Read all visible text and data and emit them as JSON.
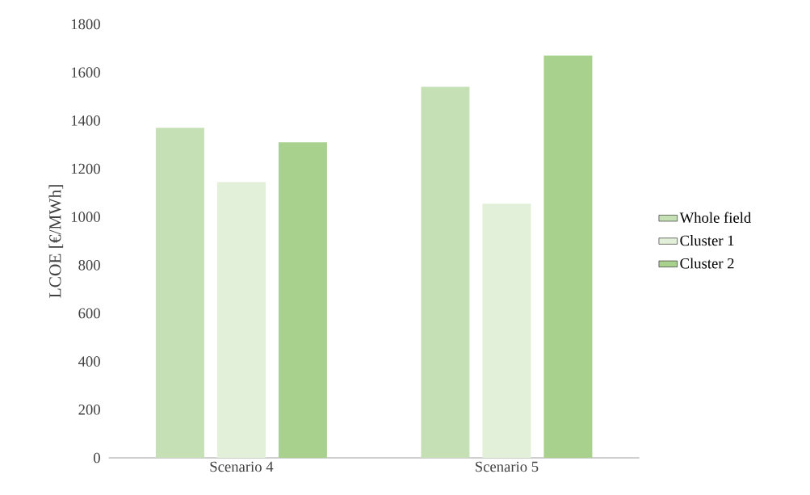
{
  "chart_data": {
    "type": "bar",
    "ylabel": "LCOE [€/MWh]",
    "categories": [
      "Scenario 4",
      "Scenario 5"
    ],
    "series": [
      {
        "name": "Whole field",
        "color": "#c5e0b4",
        "values": [
          1370,
          1540
        ]
      },
      {
        "name": "Cluster 1",
        "color": "#e2f0d9",
        "values": [
          1145,
          1055
        ]
      },
      {
        "name": "Cluster 2",
        "color": "#a9d18e",
        "values": [
          1310,
          1670
        ]
      }
    ],
    "ylim": [
      0,
      1800
    ],
    "yticks": [
      0,
      200,
      400,
      600,
      800,
      1000,
      1200,
      1400,
      1600,
      1800
    ],
    "grid": false,
    "legend": "right"
  }
}
